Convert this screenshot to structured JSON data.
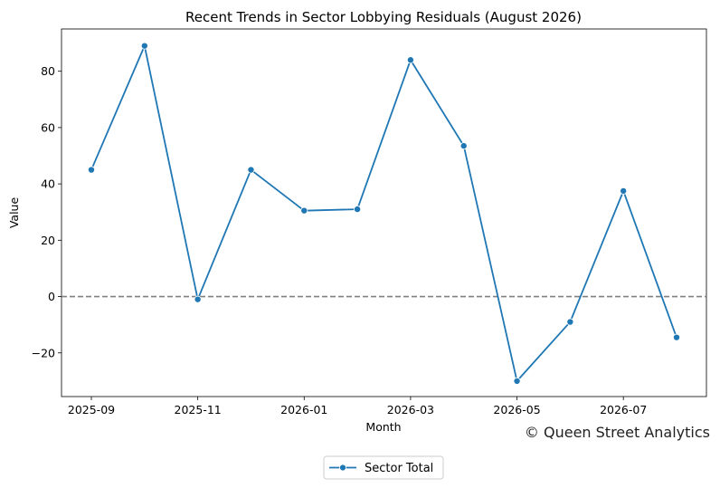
{
  "chart_data": {
    "type": "line",
    "title": "Recent Trends in Sector Lobbying Residuals (August 2026)",
    "xlabel": "Month",
    "ylabel": "Value",
    "x": [
      "2025-09",
      "2025-10",
      "2025-11",
      "2025-12",
      "2026-01",
      "2026-02",
      "2026-03",
      "2026-04",
      "2026-05",
      "2026-06",
      "2026-07",
      "2026-08"
    ],
    "series": [
      {
        "name": "Sector Total",
        "color": "#1f77b4",
        "values": [
          45,
          89,
          -1,
          45,
          30.5,
          31,
          84,
          53.5,
          -30,
          -9,
          37.5,
          -14.5
        ]
      }
    ],
    "x_tick_labels": [
      "2025-09",
      "2025-11",
      "2026-01",
      "2026-03",
      "2026-05",
      "2026-07"
    ],
    "y_ticks": [
      -20,
      0,
      20,
      40,
      60,
      80
    ],
    "ylim": [
      -35.5,
      95
    ],
    "reference_line": {
      "y": 0,
      "style": "dashed",
      "color": "#808080"
    },
    "grid": false,
    "legend_position": "bottom-center"
  },
  "annotation": {
    "copyright": "© Queen Street Analytics"
  }
}
